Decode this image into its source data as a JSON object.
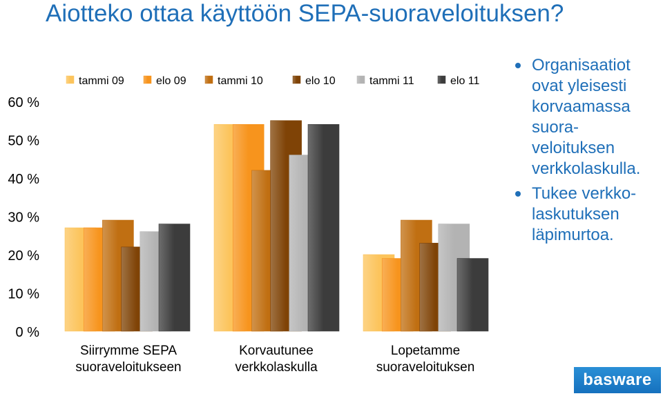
{
  "title": "Aiotteko ottaa käyttöön SEPA-suoraveloituksen?",
  "bullets": [
    "Organisaatiot ovat yleisesti korvaamassa suora-veloituksen verkkolaskulla.",
    "Tukee verkko-laskutuksen läpimurtoa."
  ],
  "logo_text": "basware",
  "colors": {
    "title": "#1f6fb8",
    "series": [
      "#fcc45c",
      "#f7941d",
      "#c06f12",
      "#7f4306",
      "#b3b3b3",
      "#3c3c3c"
    ]
  },
  "chart_data": {
    "type": "bar",
    "title": "",
    "xlabel": "",
    "ylabel": "",
    "ylim": [
      0,
      0.6
    ],
    "yticks": [
      "0 %",
      "10 %",
      "20 %",
      "30 %",
      "40 %",
      "50 %",
      "60 %"
    ],
    "legend_position": "top",
    "categories": [
      [
        "Siirrymme SEPA",
        "suoraveloitukseen"
      ],
      [
        "Korvautunee",
        "verkkolaskulla"
      ],
      [
        "Lopetamme",
        "suoraveloituksen"
      ]
    ],
    "series": [
      {
        "name": "tammi 09",
        "values": [
          0.27,
          0.54,
          0.2
        ]
      },
      {
        "name": "elo 09",
        "values": [
          0.27,
          0.54,
          0.19
        ]
      },
      {
        "name": "tammi 10",
        "values": [
          0.29,
          0.42,
          0.29
        ]
      },
      {
        "name": "elo 10",
        "values": [
          0.22,
          0.55,
          0.23
        ]
      },
      {
        "name": "tammi 11",
        "values": [
          0.26,
          0.46,
          0.28
        ]
      },
      {
        "name": "elo 11",
        "values": [
          0.28,
          0.54,
          0.19
        ]
      }
    ]
  }
}
